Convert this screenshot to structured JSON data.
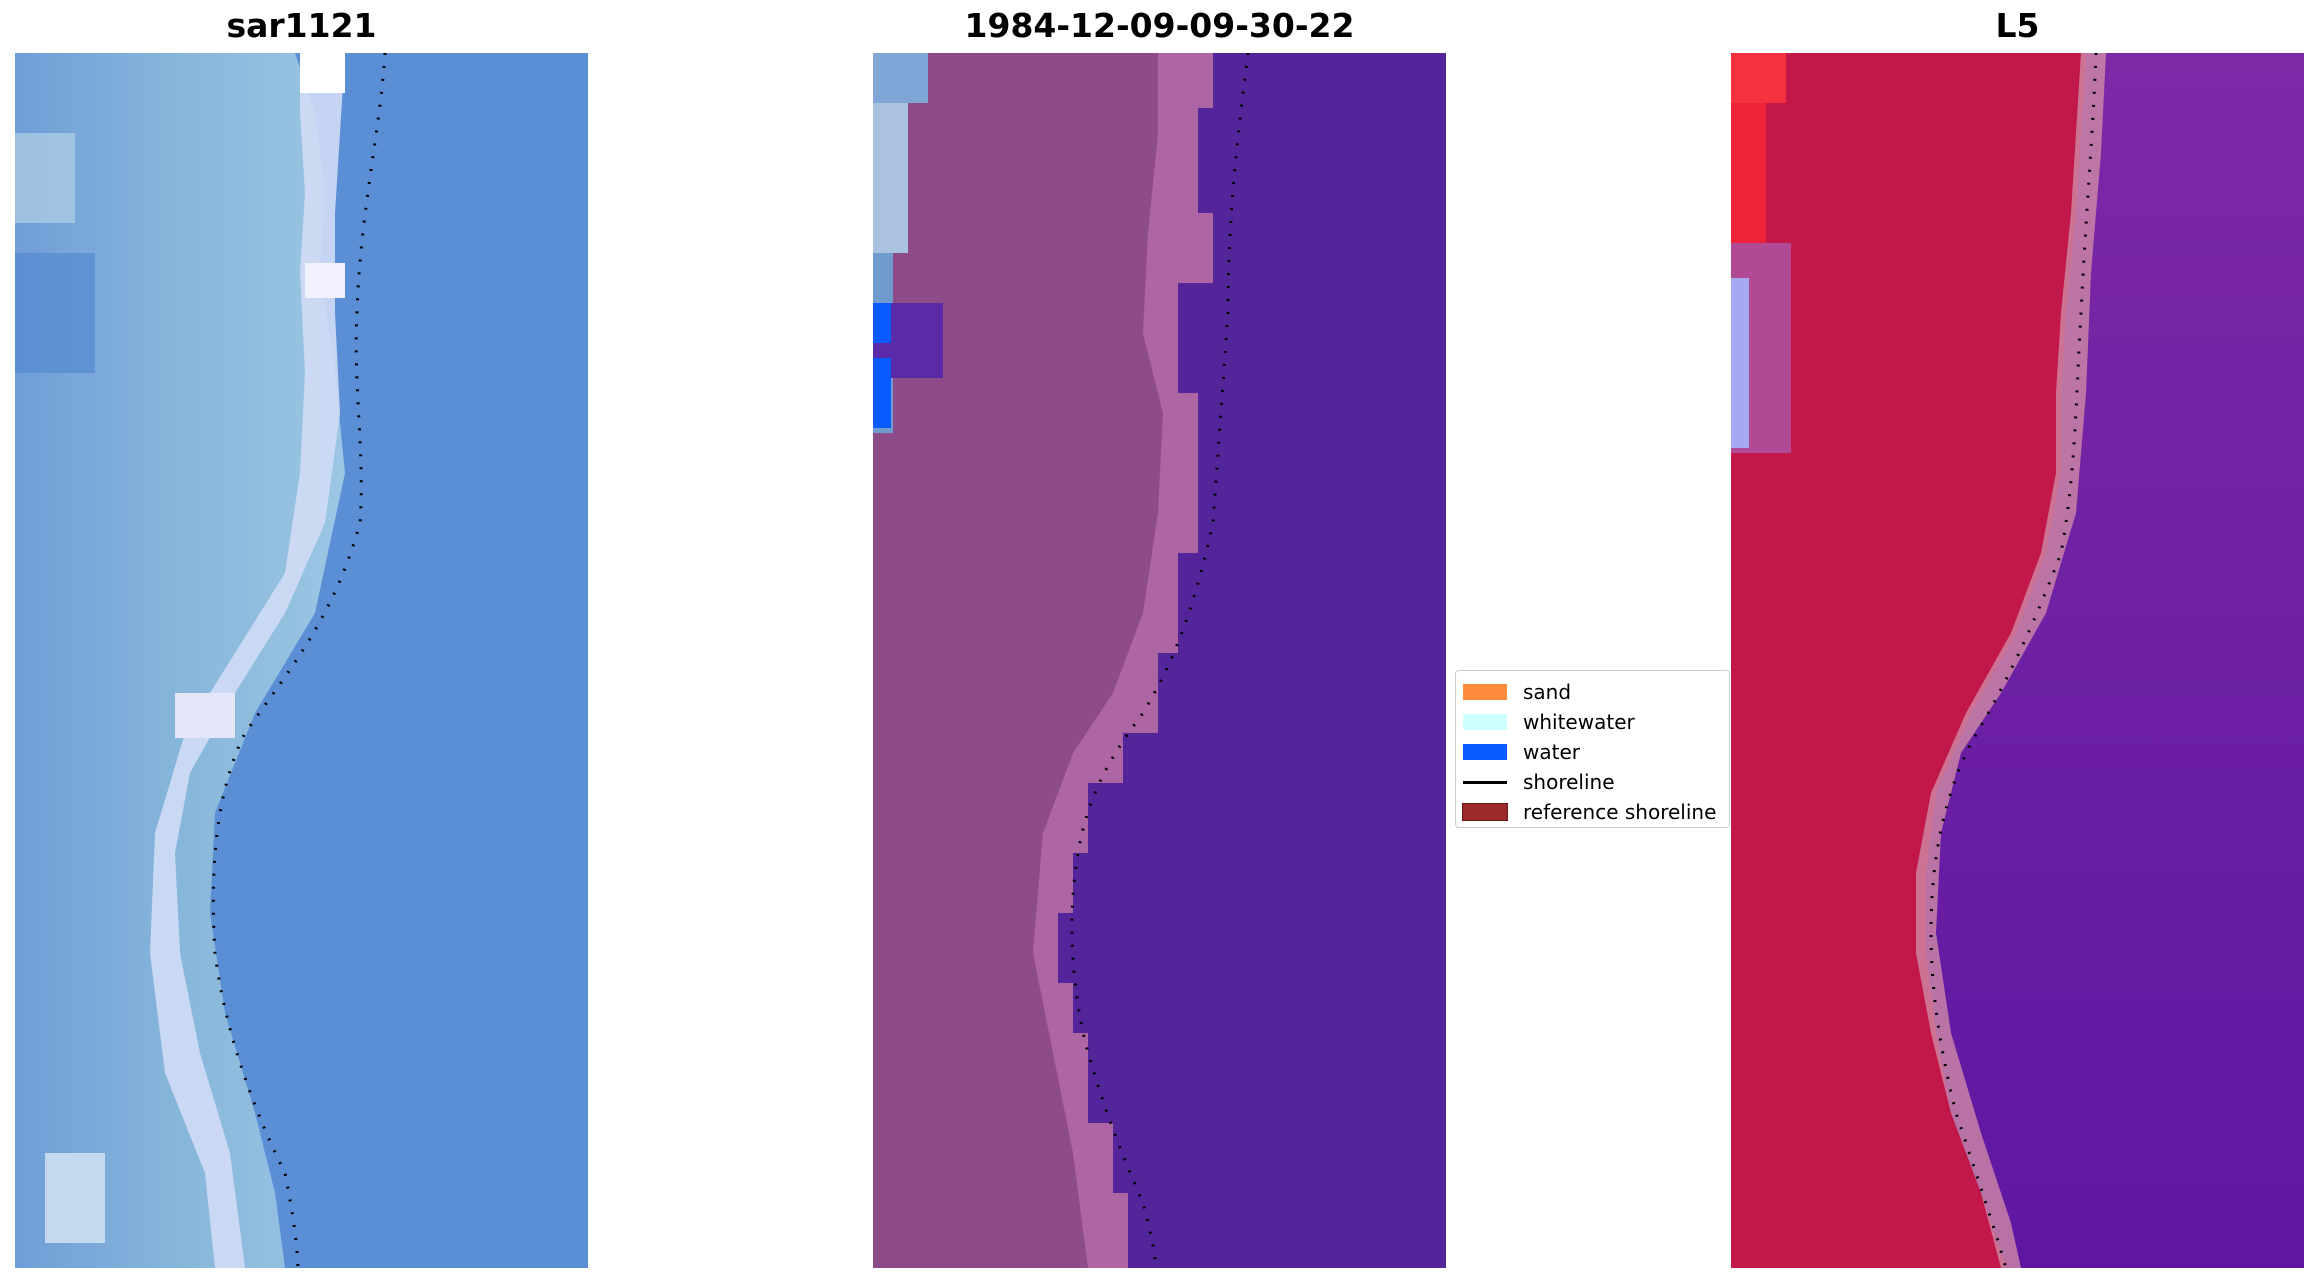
{
  "panels": [
    {
      "title": "sar1121",
      "icon": "satellite-rgb-image"
    },
    {
      "title": "1984-12-09-09-30-22",
      "icon": "classified-image"
    },
    {
      "title": "L5",
      "icon": "mndwi-image"
    }
  ],
  "legend": {
    "items": [
      {
        "label": "sand",
        "color": "#ff8c3a",
        "kind": "patch"
      },
      {
        "label": "whitewater",
        "color": "#ccffff",
        "kind": "patch"
      },
      {
        "label": "water",
        "color": "#0a5bff",
        "kind": "patch"
      },
      {
        "label": "shoreline",
        "color": "#000000",
        "kind": "line"
      },
      {
        "label": "reference shoreline",
        "color": "#9b2a2a",
        "kind": "patch"
      }
    ]
  },
  "colors": {
    "sar_base": "#5b8ed6",
    "sar_beach": "#c6d8f2",
    "class_land": "#8e4b8a",
    "class_water": "#54249a",
    "class_sand_edge": "#b46aa8",
    "ndwi_land": "#c21849",
    "ndwi_water": "#7123a0",
    "ndwi_edge": "#cf8aa6"
  }
}
